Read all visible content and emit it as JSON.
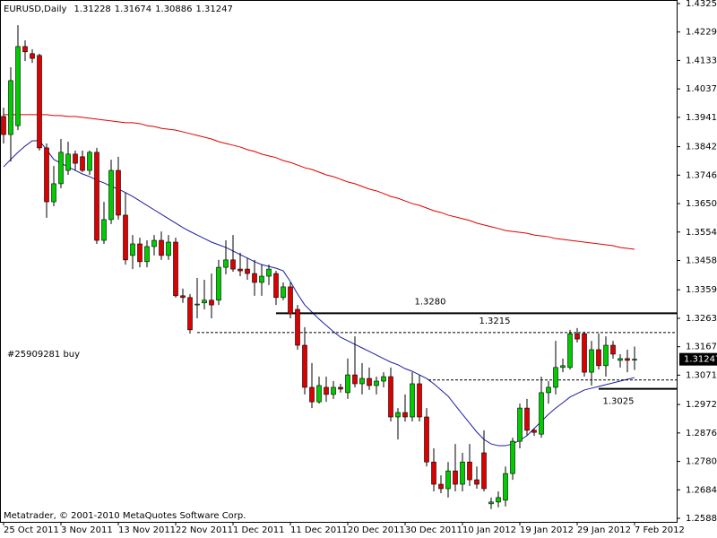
{
  "chart_data": {
    "type": "candlestick",
    "symbol": "EURUSD,Daily",
    "order_label": "#25909281 buy",
    "watermark": "Metatrader, © 2001-2010 MetaQuotes Software Corp.",
    "up_color": "#00cc00",
    "down_color": "#dd0000",
    "categories": [
      "25 Oct 2011",
      null,
      null,
      null,
      null,
      null,
      null,
      null,
      "3 Nov 2011",
      null,
      null,
      null,
      null,
      null,
      null,
      null,
      "13 Nov 2011",
      null,
      null,
      null,
      null,
      null,
      null,
      null,
      "22 Nov 2011",
      null,
      null,
      null,
      null,
      null,
      null,
      null,
      "1 Dec 2011",
      null,
      null,
      null,
      null,
      null,
      null,
      null,
      "11 Dec 2011",
      null,
      null,
      null,
      null,
      null,
      null,
      null,
      "20 Dec 2011",
      null,
      null,
      null,
      null,
      null,
      null,
      null,
      "30 Dec 2011",
      null,
      null,
      null,
      null,
      null,
      null,
      null,
      "10 Jan 2012",
      null,
      null,
      null,
      null,
      null,
      null,
      null,
      "19 Jan 2012",
      null,
      null,
      null,
      null,
      null,
      null,
      null,
      "29 Jan 2012",
      null,
      null,
      null,
      null,
      null,
      null,
      null,
      "7 Feb 2012"
    ],
    "open": [
      1.3944,
      1.3883,
      1.3913,
      1.418,
      1.4156,
      1.415,
      1.3838,
      1.3656,
      1.3717,
      1.3762,
      1.3817,
      1.3808,
      1.3762,
      1.3823,
      1.3526,
      1.3596,
      1.3762,
      1.3611,
      1.3475,
      1.3514,
      1.3454,
      1.3505,
      1.3526,
      1.3475,
      1.352,
      1.3339,
      1.3333,
      1.3308,
      1.3315,
      1.3324,
      1.3324,
      1.3435,
      1.346,
      1.3429,
      1.3429,
      1.3414,
      1.3384,
      1.3405,
      1.3414,
      1.3333,
      1.3369,
      1.3293,
      1.3172,
      1.303,
      1.2981,
      1.303,
      1.3006,
      1.303,
      1.3012,
      1.3072,
      1.3042,
      1.306,
      1.3036,
      1.3051,
      1.3066,
      1.293,
      1.2945,
      1.293,
      1.3042,
      1.293,
      1.2778,
      1.2703,
      1.2688,
      1.2748,
      1.2703,
      1.2778,
      1.2718,
      1.2809,
      1.2637,
      1.2643,
      1.2649,
      1.2739,
      1.2848,
      1.296,
      1.2885,
      1.2872,
      1.3012,
      1.303,
      1.3097,
      1.3097,
      1.3211,
      1.3211,
      1.3081,
      1.3157,
      1.3103,
      1.3172,
      1.3121,
      1.3127,
      1.31228
    ],
    "high": [
      1.3974,
      1.411,
      1.4252,
      1.4201,
      1.4171,
      1.4156,
      1.3853,
      1.3777,
      1.3868,
      1.3859,
      1.3829,
      1.3829,
      1.3829,
      1.3838,
      1.3656,
      1.3798,
      1.3808,
      1.3687,
      1.3544,
      1.3535,
      1.3526,
      1.3544,
      1.3556,
      1.3544,
      1.3535,
      1.3363,
      1.3345,
      1.3399,
      1.3393,
      1.3414,
      1.346,
      1.3526,
      1.3544,
      1.3484,
      1.3466,
      1.346,
      1.3444,
      1.3444,
      1.3423,
      1.3384,
      1.3384,
      1.3308,
      1.3233,
      1.3112,
      1.3066,
      1.3066,
      1.3051,
      1.3042,
      1.3127,
      1.3202,
      1.3112,
      1.3097,
      1.3066,
      1.3081,
      1.3097,
      1.296,
      1.3006,
      1.3081,
      1.3072,
      1.296,
      1.2824,
      1.2733,
      1.2778,
      1.2839,
      1.2809,
      1.2839,
      1.2763,
      1.2885,
      1.2658,
      1.2679,
      1.2763,
      1.286,
      1.2975,
      1.2991,
      1.2891,
      1.3066,
      1.3051,
      1.3187,
      1.3127,
      1.3224,
      1.323,
      1.3218,
      1.3187,
      1.3211,
      1.3202,
      1.3187,
      1.3142,
      1.3157,
      1.31674
    ],
    "low": [
      1.3853,
      1.3792,
      1.3898,
      1.4131,
      1.4125,
      1.3829,
      1.3602,
      1.3641,
      1.3702,
      1.3747,
      1.3762,
      1.3756,
      1.3747,
      1.3514,
      1.3514,
      1.3581,
      1.3596,
      1.3444,
      1.3429,
      1.3435,
      1.3435,
      1.3475,
      1.346,
      1.346,
      1.3333,
      1.3315,
      1.3211,
      1.3263,
      1.3293,
      1.3263,
      1.3308,
      1.3411,
      1.342,
      1.3405,
      1.3393,
      1.3339,
      1.3339,
      1.3375,
      1.3308,
      1.3324,
      1.3263,
      1.3157,
      1.3006,
      1.296,
      1.2975,
      1.2981,
      1.2991,
      1.3012,
      1.2991,
      1.303,
      1.3006,
      1.3021,
      1.3006,
      1.303,
      1.2915,
      1.2854,
      1.2915,
      1.2915,
      1.2915,
      1.2763,
      1.2679,
      1.2673,
      1.2658,
      1.2679,
      1.2679,
      1.2697,
      1.2688,
      1.2679,
      1.2619,
      1.2625,
      1.2628,
      1.2718,
      1.2824,
      1.2869,
      1.2866,
      1.286,
      1.2975,
      1.3006,
      1.3081,
      1.309,
      1.3181,
      1.3066,
      1.3036,
      1.309,
      1.3066,
      1.3127,
      1.3097,
      1.3081,
      1.30886
    ],
    "close": [
      1.3883,
      1.4065,
      1.418,
      1.4162,
      1.414,
      1.3838,
      1.3656,
      1.3717,
      1.3823,
      1.3817,
      1.3786,
      1.3762,
      1.3823,
      1.3526,
      1.3596,
      1.3762,
      1.3611,
      1.346,
      1.3514,
      1.3454,
      1.3505,
      1.3526,
      1.3475,
      1.352,
      1.3339,
      1.3333,
      1.3224,
      1.3311,
      1.3324,
      1.3308,
      1.3435,
      1.346,
      1.3429,
      1.3423,
      1.3414,
      1.3384,
      1.3405,
      1.3429,
      1.3333,
      1.3369,
      1.3278,
      1.3172,
      1.303,
      1.2981,
      1.3036,
      1.3006,
      1.303,
      1.3024,
      1.3072,
      1.3042,
      1.306,
      1.3036,
      1.3051,
      1.3066,
      1.293,
      1.2945,
      1.293,
      1.3042,
      1.293,
      1.2778,
      1.2703,
      1.2688,
      1.2748,
      1.2703,
      1.2778,
      1.2718,
      1.2703,
      1.2688,
      1.2643,
      1.2658,
      1.2739,
      1.2848,
      1.296,
      1.2885,
      1.2878,
      1.3012,
      1.303,
      1.3097,
      1.3103,
      1.3211,
      1.3193,
      1.3081,
      1.3157,
      1.3103,
      1.3172,
      1.3142,
      1.3127,
      1.3121,
      1.31247
    ],
    "lines": [
      {
        "color": "#1c1ca0",
        "values": [
          1.3774,
          1.3799,
          1.3823,
          1.3844,
          1.3862,
          1.3862,
          1.3832,
          1.3799,
          1.3786,
          1.3774,
          1.3762,
          1.375,
          1.3741,
          1.3729,
          1.372,
          1.3708,
          1.3699,
          1.3687,
          1.3674,
          1.3659,
          1.3644,
          1.3629,
          1.3614,
          1.3599,
          1.3584,
          1.3569,
          1.3556,
          1.3544,
          1.3532,
          1.352,
          1.3511,
          1.3502,
          1.349,
          1.3478,
          1.3466,
          1.3454,
          1.3444,
          1.3438,
          1.3432,
          1.3423,
          1.3387,
          1.3345,
          1.3308,
          1.3284,
          1.326,
          1.3239,
          1.3218,
          1.3199,
          1.3187,
          1.3175,
          1.3163,
          1.3151,
          1.3139,
          1.3127,
          1.3115,
          1.3106,
          1.3093,
          1.3084,
          1.3072,
          1.306,
          1.3042,
          1.3021,
          1.3,
          1.2969,
          1.2939,
          1.2909,
          1.2879,
          1.2854,
          1.2839,
          1.2833,
          1.2833,
          1.2839,
          1.2851,
          1.2867,
          1.2891,
          1.2915,
          1.2939,
          1.296,
          1.2978,
          1.2997,
          1.3009,
          1.3021,
          1.3027,
          1.3033,
          1.3039,
          1.3045,
          1.3051,
          1.3057,
          1.3063
        ]
      },
      {
        "color": "#e00000",
        "values": [
          1.395,
          1.395,
          1.395,
          1.395,
          1.395,
          1.395,
          1.395,
          1.3947,
          1.3947,
          1.3944,
          1.3944,
          1.3941,
          1.3938,
          1.3935,
          1.3932,
          1.3929,
          1.3926,
          1.3923,
          1.3923,
          1.392,
          1.3913,
          1.391,
          1.3904,
          1.3901,
          1.3898,
          1.3892,
          1.3886,
          1.388,
          1.3874,
          1.3868,
          1.3859,
          1.3853,
          1.3847,
          1.3841,
          1.3832,
          1.3826,
          1.3817,
          1.3811,
          1.3805,
          1.3795,
          1.3789,
          1.378,
          1.3771,
          1.3765,
          1.3756,
          1.3747,
          1.3741,
          1.3732,
          1.3723,
          1.3717,
          1.3708,
          1.3699,
          1.3693,
          1.3684,
          1.3674,
          1.3668,
          1.3659,
          1.365,
          1.3644,
          1.3635,
          1.3626,
          1.362,
          1.3611,
          1.3605,
          1.3599,
          1.3593,
          1.3584,
          1.3578,
          1.3572,
          1.3566,
          1.3559,
          1.3556,
          1.3553,
          1.355,
          1.3544,
          1.3541,
          1.3538,
          1.3532,
          1.3529,
          1.3526,
          1.3523,
          1.352,
          1.3517,
          1.3514,
          1.3511,
          1.3508,
          1.3502,
          1.3499,
          1.3496
        ]
      }
    ],
    "levels": [
      {
        "value": 1.328,
        "label": "1.3280",
        "style": "solid"
      },
      {
        "value": 1.3215,
        "label": "1.3215",
        "style": "dashed"
      },
      {
        "value": 1.3025,
        "label": "1.3025",
        "style": "solid"
      },
      {
        "value": 1.3055,
        "style": "dashed"
      }
    ],
    "ylim": [
      1.2576,
      1.4337
    ],
    "yticks": [
      {
        "value": 1.4325,
        "label": "1.43250"
      },
      {
        "value": 1.4229,
        "label": "1.42290"
      },
      {
        "value": 1.4133,
        "label": "1.41330"
      },
      {
        "value": 1.4037,
        "label": "1.40370"
      },
      {
        "value": 1.3941,
        "label": "1.39410"
      },
      {
        "value": 1.3842,
        "label": "1.38420"
      },
      {
        "value": 1.3746,
        "label": "1.37460"
      },
      {
        "value": 1.365,
        "label": "1.36500"
      },
      {
        "value": 1.3554,
        "label": "1.35540"
      },
      {
        "value": 1.3458,
        "label": "1.34580"
      },
      {
        "value": 1.3359,
        "label": "1.33590"
      },
      {
        "value": 1.3263,
        "label": "1.32630"
      },
      {
        "value": 1.3167,
        "label": "1.31670"
      },
      {
        "value": 1.3071,
        "label": "1.30710"
      },
      {
        "value": 1.2972,
        "label": "1.29720"
      },
      {
        "value": 1.2876,
        "label": "1.28760"
      },
      {
        "value": 1.278,
        "label": "1.27800"
      },
      {
        "value": 1.2684,
        "label": "1.26840"
      },
      {
        "value": 1.2588,
        "label": "1.25880"
      }
    ]
  }
}
